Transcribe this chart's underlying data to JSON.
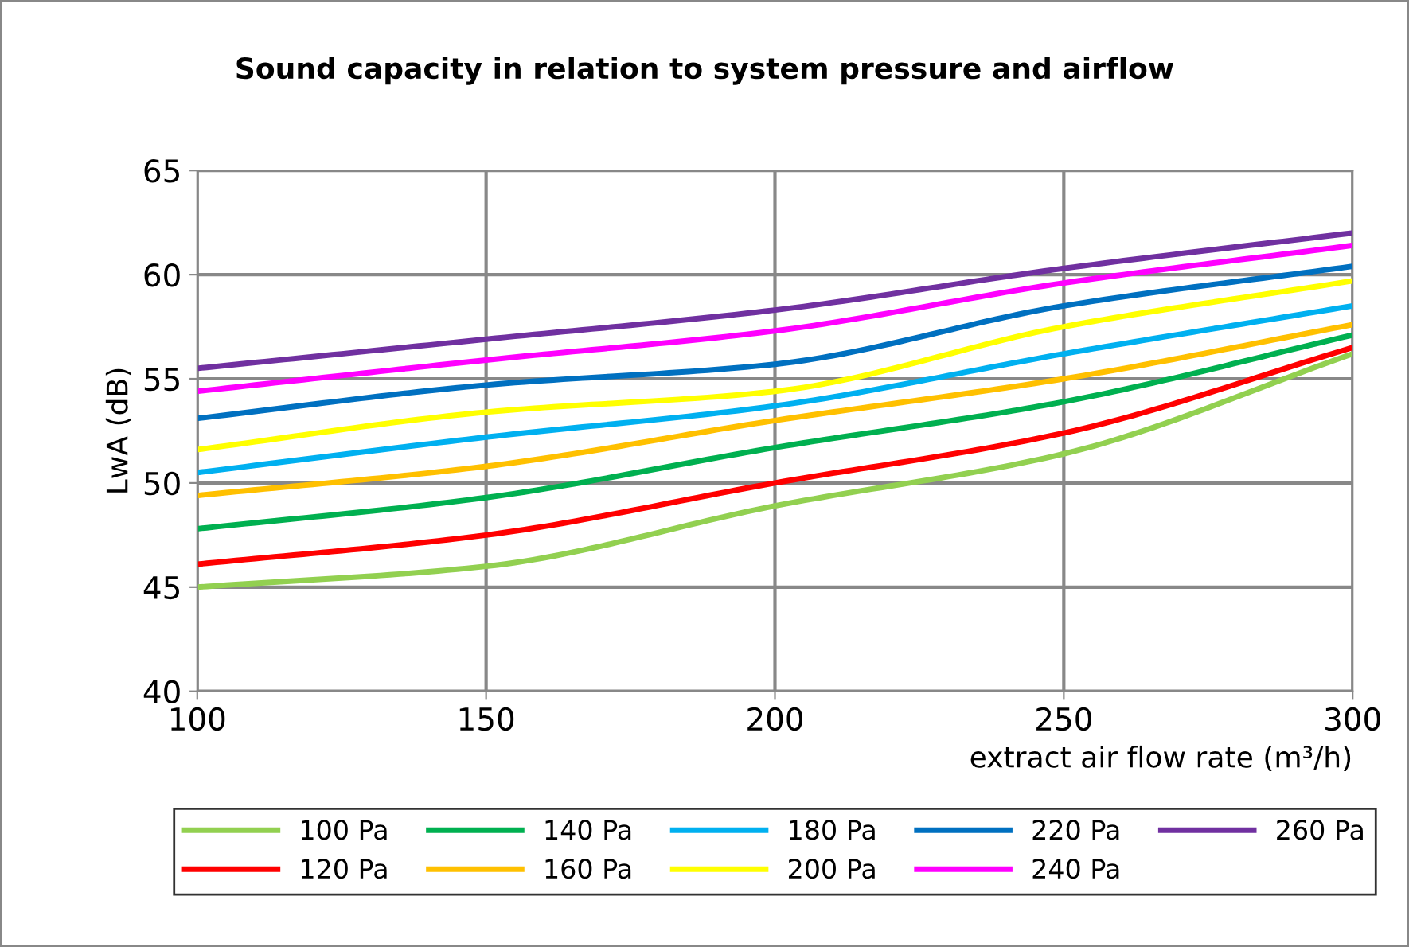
{
  "chart_data": {
    "type": "line",
    "title": "Sound capacity in relation to system pressure and airflow",
    "xlabel": "extract air flow rate (m³/h)",
    "ylabel": "LwA (dB)",
    "x": [
      100,
      150,
      200,
      250,
      300
    ],
    "series": [
      {
        "name": "100 Pa",
        "color": "#92d050",
        "values": [
          45.0,
          46.0,
          48.9,
          51.4,
          56.2
        ]
      },
      {
        "name": "120 Pa",
        "color": "#ff0000",
        "values": [
          46.1,
          47.5,
          50.0,
          52.4,
          56.5
        ]
      },
      {
        "name": "140 Pa",
        "color": "#00b050",
        "values": [
          47.8,
          49.3,
          51.7,
          53.9,
          57.1
        ]
      },
      {
        "name": "160 Pa",
        "color": "#ffc000",
        "values": [
          49.4,
          50.8,
          53.0,
          55.0,
          57.6
        ]
      },
      {
        "name": "180 Pa",
        "color": "#00b0f0",
        "values": [
          50.5,
          52.2,
          53.7,
          56.2,
          58.5
        ]
      },
      {
        "name": "200 Pa",
        "color": "#ffff00",
        "values": [
          51.6,
          53.4,
          54.4,
          57.5,
          59.7
        ]
      },
      {
        "name": "220 Pa",
        "color": "#0070c0",
        "values": [
          53.1,
          54.7,
          55.7,
          58.5,
          60.4
        ]
      },
      {
        "name": "240 Pa",
        "color": "#ff00ff",
        "values": [
          54.4,
          55.9,
          57.3,
          59.6,
          61.4
        ]
      },
      {
        "name": "260 Pa",
        "color": "#7030a0",
        "values": [
          55.5,
          56.9,
          58.3,
          60.3,
          62.0
        ]
      }
    ],
    "xlim": [
      100,
      300
    ],
    "xticks": [
      100,
      150,
      200,
      250,
      300
    ],
    "ylim": [
      40,
      65
    ],
    "yticks": [
      40,
      45,
      50,
      55,
      60,
      65
    ],
    "grid": true,
    "legend": "bottom",
    "marker": "none",
    "line_style": "solid"
  }
}
